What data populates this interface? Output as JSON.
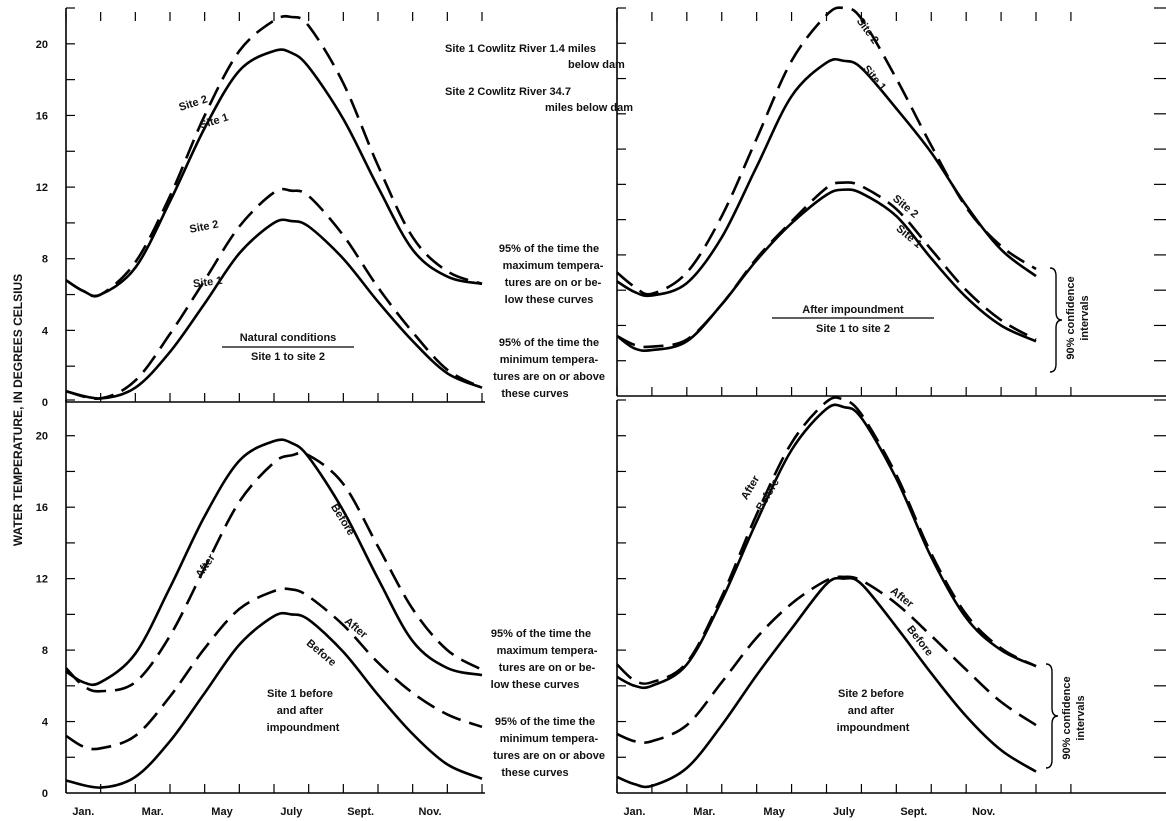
{
  "ylabel": "WATER TEMPERATURE, IN DEGREES CELSIUS",
  "y_ticks": [
    "0",
    "4",
    "8",
    "12",
    "16",
    "20"
  ],
  "x_ticks": [
    "Jan.",
    "Mar.",
    "May",
    "July",
    "Sept.",
    "Nov."
  ],
  "annotations": {
    "site_legend": [
      "Site 1    Cowlitz River 1.4 miles",
      "below dam",
      "Site 2    Cowlitz River 34.7",
      "miles below dam"
    ],
    "max_note": [
      "95% of the time the",
      "maximum tempera-",
      "tures are on or be-",
      "low these curves"
    ],
    "min_note": [
      "95% of the time the",
      "minimum tempera-",
      "tures are on or above",
      "these curves"
    ],
    "confidence": [
      "90% confidence",
      "intervals"
    ],
    "natural": [
      "Natural conditions",
      "Site 1 to site 2"
    ],
    "after_imp": [
      "After impoundment",
      "Site 1 to site 2"
    ],
    "site1_ba": [
      "Site 1 before",
      "and after",
      "impoundment"
    ],
    "site2_ba": [
      "Site 2 before",
      "and after",
      "impoundment"
    ]
  },
  "chart_data": [
    {
      "type": "line",
      "panel": "top-left",
      "title": "Natural conditions / Site 1 to site 2",
      "ylim": [
        0,
        22
      ],
      "series": [
        {
          "name": "Site 1",
          "group": "max",
          "style": "solid",
          "x": [
            0,
            0.5,
            1,
            2,
            3,
            4,
            5,
            6,
            6.5,
            7,
            8,
            9,
            10,
            11,
            12
          ],
          "y": [
            6.8,
            6.2,
            6.0,
            7.5,
            11.2,
            15.3,
            18.5,
            19.6,
            19.5,
            18.7,
            15.8,
            12.0,
            8.5,
            7.0,
            6.6
          ]
        },
        {
          "name": "Site 2",
          "group": "max",
          "style": "dashed",
          "x": [
            0,
            0.5,
            1,
            2,
            3,
            4,
            5,
            6,
            6.5,
            7,
            8,
            9,
            10,
            11,
            12
          ],
          "y": [
            6.8,
            6.2,
            6.0,
            7.8,
            11.5,
            16.0,
            19.6,
            21.3,
            21.5,
            21.0,
            17.8,
            13.2,
            9.2,
            7.3,
            6.6
          ]
        },
        {
          "name": "Site 1",
          "group": "min",
          "style": "solid",
          "x": [
            0,
            1,
            2,
            3,
            4,
            5,
            6,
            6.5,
            7,
            8,
            9,
            10,
            11,
            12
          ],
          "y": [
            0.6,
            0.2,
            0.8,
            2.8,
            5.5,
            8.3,
            10.0,
            10.1,
            9.8,
            8.0,
            5.6,
            3.4,
            1.6,
            0.8
          ]
        },
        {
          "name": "Site 2",
          "group": "min",
          "style": "dashed",
          "x": [
            0,
            1,
            2,
            3,
            4,
            5,
            6,
            6.5,
            7,
            8,
            9,
            10,
            11,
            12
          ],
          "y": [
            0.6,
            0.2,
            1.2,
            3.8,
            6.8,
            9.8,
            11.7,
            11.8,
            11.5,
            9.3,
            6.4,
            3.9,
            1.8,
            0.8
          ]
        }
      ]
    },
    {
      "type": "line",
      "panel": "top-right",
      "title": "After impoundment / Site 1 to site 2",
      "ylim": [
        0,
        22
      ],
      "series": [
        {
          "name": "Site 1",
          "group": "max",
          "style": "solid",
          "x": [
            0,
            0.5,
            1,
            2,
            3,
            4,
            5,
            6,
            6.5,
            7,
            8,
            9,
            10,
            11,
            12
          ],
          "y": [
            6.5,
            5.9,
            5.7,
            6.4,
            9.0,
            13.0,
            17.0,
            18.9,
            19.0,
            18.6,
            16.3,
            13.8,
            10.8,
            8.3,
            6.8
          ]
        },
        {
          "name": "Site 2",
          "group": "max",
          "style": "dashed",
          "x": [
            0,
            0.5,
            1,
            2,
            3,
            4,
            5,
            6,
            6.5,
            7,
            8,
            9,
            10,
            11,
            12
          ],
          "y": [
            7.0,
            6.2,
            5.8,
            7.0,
            10.2,
            14.6,
            19.0,
            21.6,
            22.0,
            21.4,
            18.0,
            14.2,
            10.7,
            8.5,
            7.2
          ]
        },
        {
          "name": "Site 1",
          "group": "min",
          "style": "solid",
          "x": [
            0,
            0.5,
            1,
            2,
            3,
            4,
            5,
            6,
            6.5,
            7,
            8,
            9,
            10,
            11,
            12
          ],
          "y": [
            3.4,
            2.7,
            2.6,
            3.1,
            5.2,
            7.7,
            9.8,
            11.4,
            11.7,
            11.5,
            10.2,
            7.8,
            5.6,
            4.0,
            3.1
          ]
        },
        {
          "name": "Site 2",
          "group": "min",
          "style": "dashed",
          "x": [
            0,
            0.5,
            1,
            2,
            3,
            4,
            5,
            6,
            6.5,
            7,
            8,
            9,
            10,
            11,
            12
          ],
          "y": [
            3.4,
            2.9,
            2.8,
            3.2,
            5.2,
            7.8,
            9.9,
            11.8,
            12.1,
            11.9,
            10.6,
            8.3,
            6.0,
            4.3,
            3.2
          ]
        }
      ]
    },
    {
      "type": "line",
      "panel": "bottom-left",
      "title": "Site 1 before and after impoundment",
      "ylim": [
        0,
        22
      ],
      "series": [
        {
          "name": "Before",
          "group": "max",
          "style": "solid",
          "x": [
            0,
            0.5,
            1,
            2,
            3,
            4,
            5,
            6,
            6.5,
            7,
            8,
            9,
            10,
            11,
            12
          ],
          "y": [
            6.8,
            6.2,
            6.2,
            7.8,
            11.5,
            15.5,
            18.6,
            19.7,
            19.6,
            18.8,
            15.8,
            12.0,
            8.5,
            7.0,
            6.6
          ]
        },
        {
          "name": "After",
          "group": "max",
          "style": "dashed",
          "x": [
            0,
            0.5,
            1,
            2,
            3,
            4,
            5,
            6,
            6.5,
            7,
            8,
            9,
            10,
            11,
            12
          ],
          "y": [
            7.0,
            6.0,
            5.7,
            6.2,
            8.8,
            12.6,
            16.3,
            18.5,
            18.9,
            18.9,
            17.3,
            13.8,
            10.3,
            8.0,
            6.9
          ]
        },
        {
          "name": "Before",
          "group": "min",
          "style": "solid",
          "x": [
            0,
            1,
            2,
            3,
            4,
            5,
            6,
            6.5,
            7,
            8,
            9,
            10,
            11,
            12
          ],
          "y": [
            0.7,
            0.3,
            0.9,
            2.9,
            5.6,
            8.3,
            9.9,
            10.0,
            9.7,
            7.9,
            5.5,
            3.3,
            1.6,
            0.8
          ]
        },
        {
          "name": "After",
          "group": "min",
          "style": "dashed",
          "x": [
            0,
            0.5,
            1,
            2,
            3,
            4,
            5,
            6,
            6.5,
            7,
            8,
            9,
            10,
            11,
            12
          ],
          "y": [
            3.2,
            2.6,
            2.5,
            3.2,
            5.4,
            8.1,
            10.3,
            11.3,
            11.4,
            11.0,
            9.4,
            7.3,
            5.6,
            4.4,
            3.7
          ]
        }
      ]
    },
    {
      "type": "line",
      "panel": "bottom-right",
      "title": "Site 2 before and after impoundment",
      "ylim": [
        0,
        22
      ],
      "series": [
        {
          "name": "Before",
          "group": "max",
          "style": "solid",
          "x": [
            0,
            0.5,
            1,
            2,
            3,
            4,
            5,
            6,
            6.5,
            7,
            8,
            9,
            10,
            11,
            12
          ],
          "y": [
            6.5,
            6.0,
            6.0,
            7.2,
            10.8,
            15.2,
            19.2,
            21.5,
            21.6,
            21.0,
            17.6,
            13.2,
            9.8,
            8.0,
            7.1
          ]
        },
        {
          "name": "After",
          "group": "max",
          "style": "dashed",
          "x": [
            0,
            0.5,
            1,
            2,
            3,
            4,
            5,
            6,
            6.5,
            7,
            8,
            9,
            10,
            11,
            12
          ],
          "y": [
            7.2,
            6.3,
            6.2,
            7.3,
            11.0,
            15.6,
            19.6,
            21.9,
            22.0,
            21.2,
            17.8,
            13.4,
            10.0,
            8.1,
            7.1
          ]
        },
        {
          "name": "Before",
          "group": "min",
          "style": "solid",
          "x": [
            0,
            0.5,
            1,
            2,
            3,
            4,
            5,
            6,
            6.5,
            7,
            8,
            9,
            10,
            11,
            12
          ],
          "y": [
            0.9,
            0.5,
            0.4,
            1.4,
            3.8,
            6.6,
            9.2,
            11.7,
            12.0,
            11.7,
            9.3,
            6.7,
            4.3,
            2.4,
            1.2
          ]
        },
        {
          "name": "After",
          "group": "min",
          "style": "dashed",
          "x": [
            0,
            0.5,
            1,
            2,
            3,
            4,
            5,
            6,
            6.5,
            7,
            8,
            9,
            10,
            11,
            12
          ],
          "y": [
            3.3,
            2.9,
            2.9,
            3.8,
            6.2,
            8.7,
            10.6,
            11.9,
            12.1,
            11.9,
            10.6,
            8.8,
            6.9,
            5.1,
            3.8
          ]
        }
      ]
    }
  ]
}
